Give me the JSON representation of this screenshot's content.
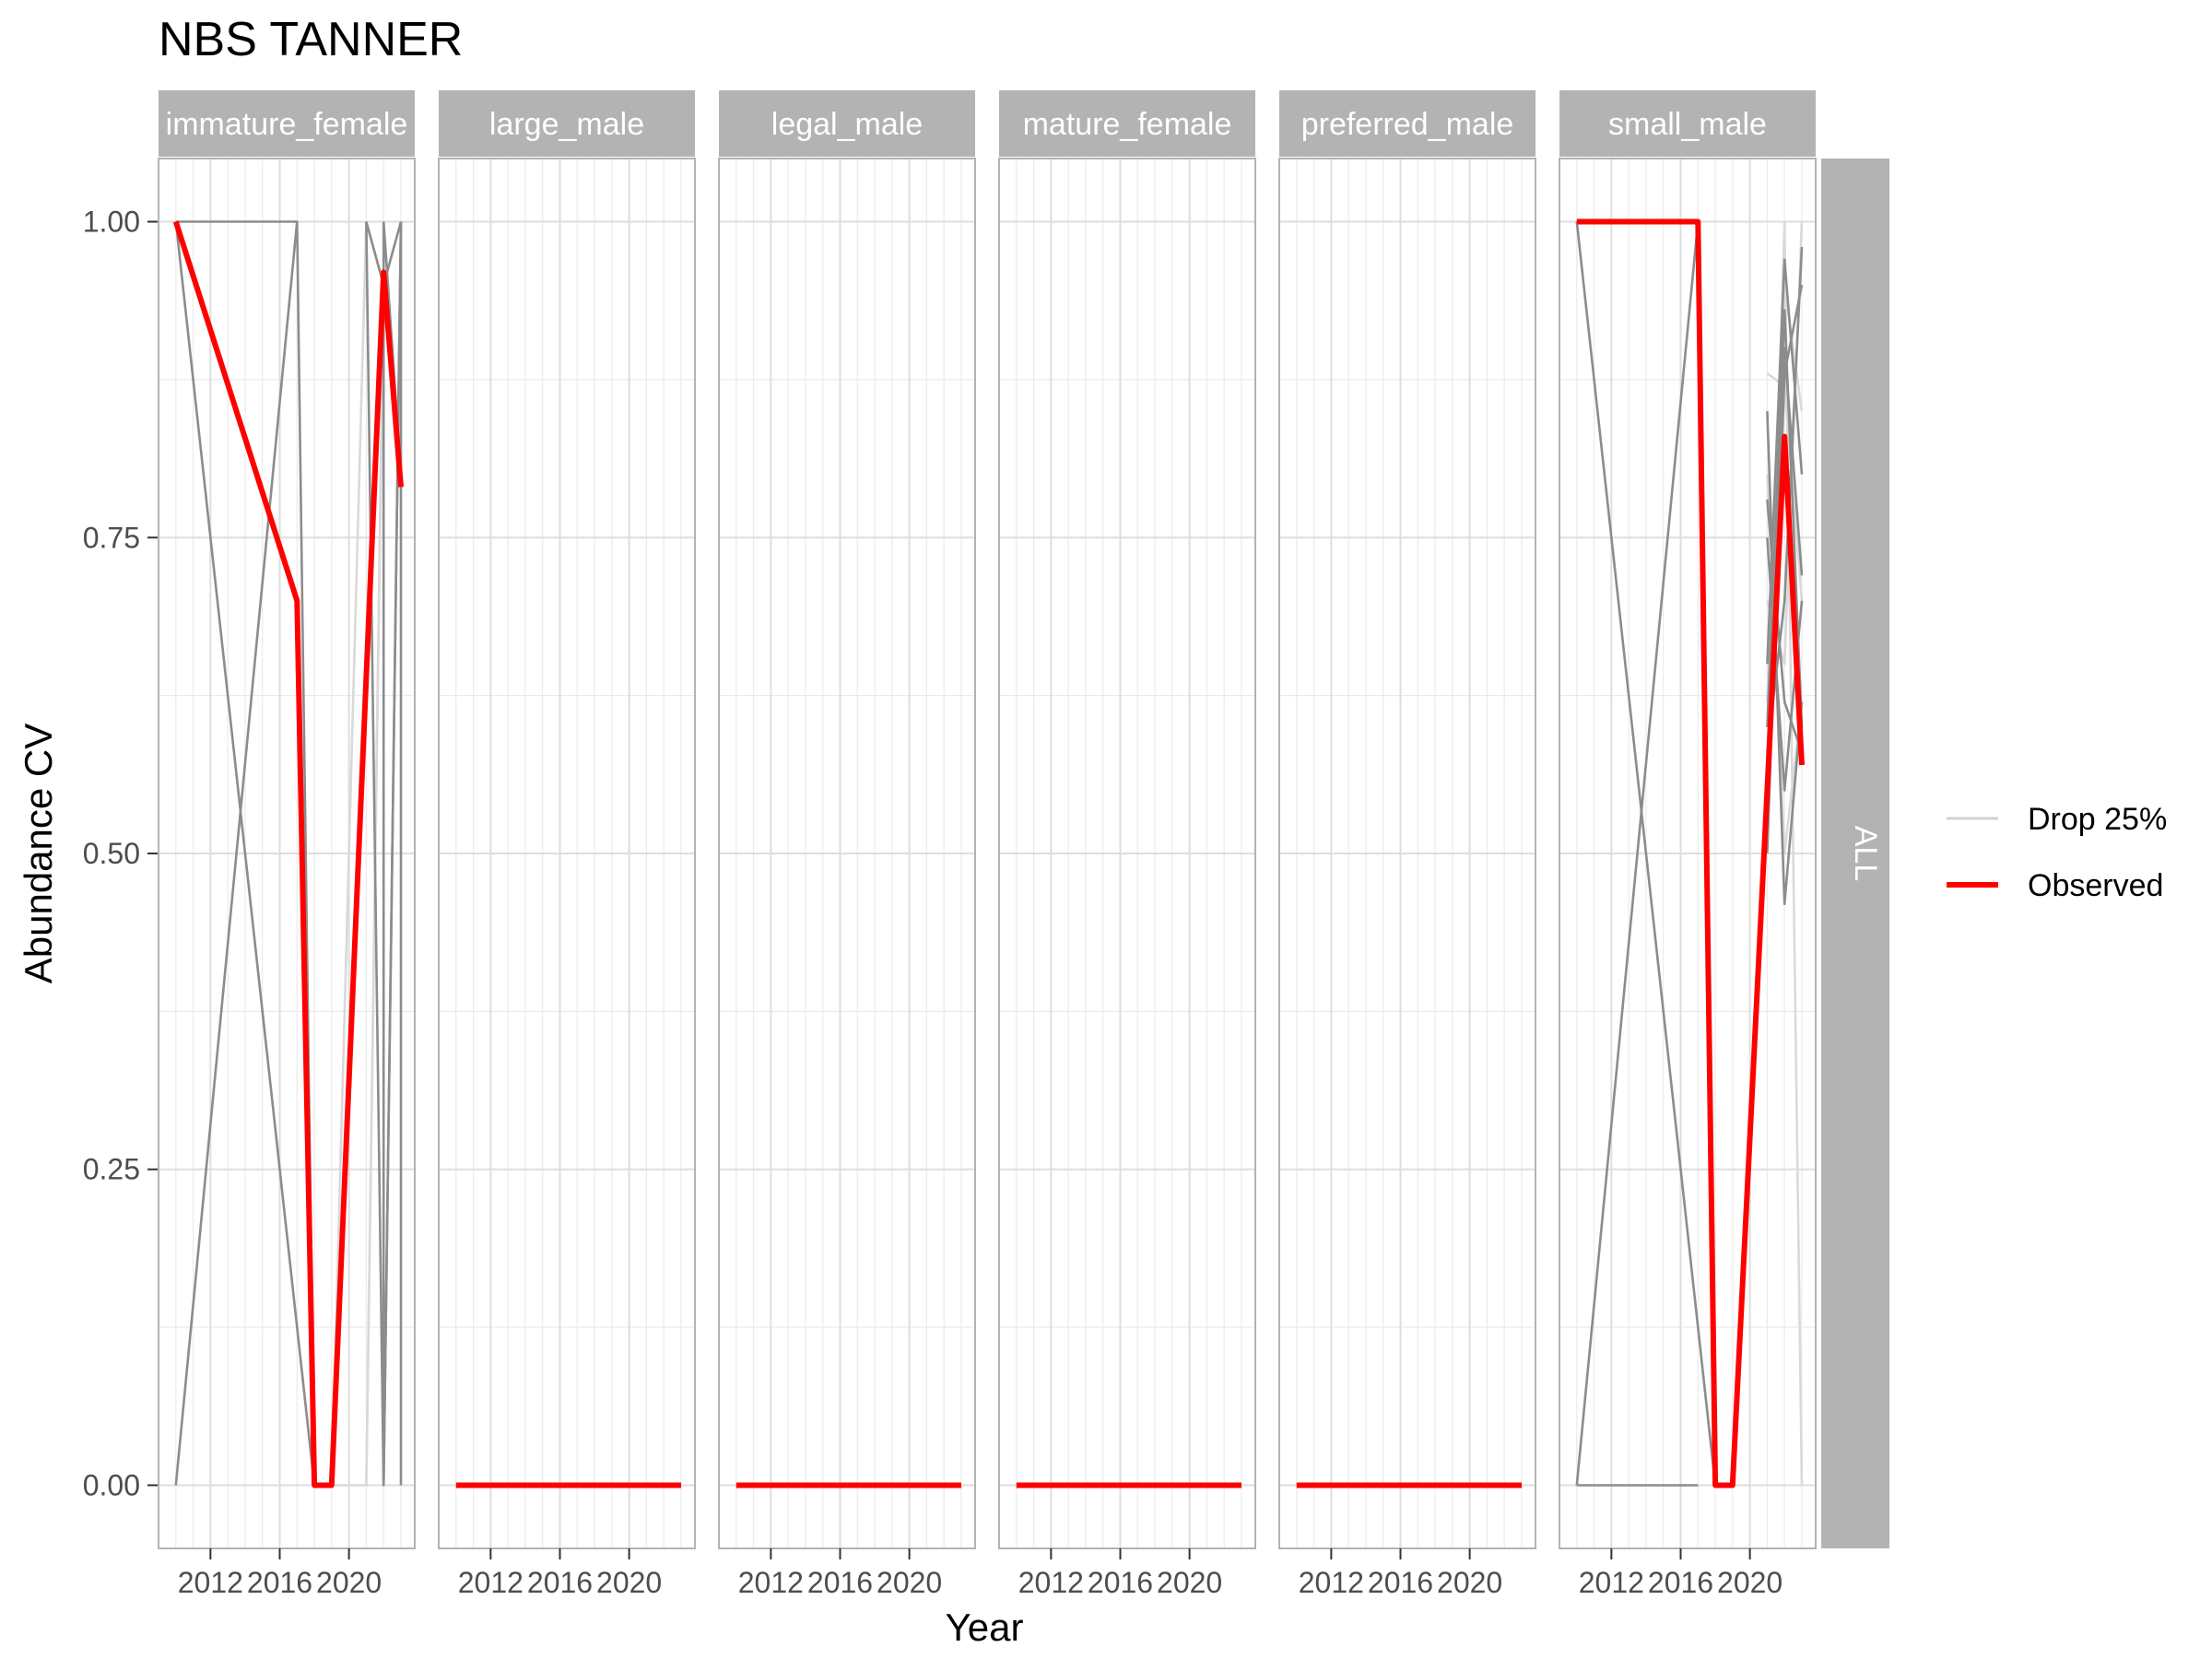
{
  "chart_data": {
    "type": "line",
    "title": "NBS TANNER",
    "xlabel": "Year",
    "ylabel": "Abundance CV",
    "xlim": [
      2009,
      2023.8
    ],
    "ylim": [
      -0.05,
      1.05
    ],
    "x_ticks": [
      2012,
      2016,
      2020
    ],
    "x_tick_labels": [
      "2012",
      "2016",
      "2020"
    ],
    "y_ticks": [
      0,
      0.25,
      0.5,
      0.75,
      1.0
    ],
    "y_tick_labels": [
      "0.00",
      "0.25",
      "0.50",
      "0.75",
      "1.00"
    ],
    "row_strip": "ALL",
    "grid": true,
    "legend": {
      "placement": "right",
      "entries": [
        {
          "label": "Drop 25%",
          "color": "#d3d3d3"
        },
        {
          "label": "Observed",
          "color": "#ff0000"
        }
      ]
    },
    "colors": {
      "observed": "#ff0000",
      "drop_light": "#d9d9d9",
      "drop_dark": "#8c8c8c",
      "strip_bg": "#b3b3b3",
      "grid": "#ebebeb",
      "panel_border": "#b3b3b3"
    },
    "panels": [
      {
        "name": "immature_female",
        "observed": {
          "x": [
            2010,
            2017,
            2018,
            2019,
            2022,
            2023
          ],
          "y": [
            1.0,
            0.7,
            0.0,
            0.0,
            0.96,
            0.79
          ]
        },
        "drop_dark": [
          {
            "x": [
              2010,
              2017,
              2018
            ],
            "y": [
              1.0,
              1.0,
              0.0
            ]
          },
          {
            "x": [
              2010,
              2017
            ],
            "y": [
              0.0,
              1.0
            ]
          },
          {
            "x": [
              2010,
              2018
            ],
            "y": [
              1.0,
              0.0
            ]
          },
          {
            "x": [
              2021,
              2022,
              2023
            ],
            "y": [
              1.0,
              0.95,
              1.0
            ]
          },
          {
            "x": [
              2022,
              2023
            ],
            "y": [
              0.0,
              1.0
            ]
          },
          {
            "x": [
              2021,
              2022
            ],
            "y": [
              1.0,
              0.0
            ]
          },
          {
            "x": [
              2022,
              2022,
              2023
            ],
            "y": [
              1.0,
              0.0,
              1.0
            ]
          },
          {
            "x": [
              2023,
              2023
            ],
            "y": [
              1.0,
              0.0
            ]
          },
          {
            "x": [
              2022,
              2023
            ],
            "y": [
              1.0,
              0.8
            ]
          }
        ],
        "drop_light": [
          {
            "x": [
              2018,
              2019,
              2021,
              2022
            ],
            "y": [
              0.0,
              0.0,
              0.0,
              0.96
            ]
          },
          {
            "x": [
              2019,
              2021,
              2022
            ],
            "y": [
              0.0,
              1.0,
              0.95
            ]
          },
          {
            "x": [
              2021,
              2022,
              2023
            ],
            "y": [
              0.0,
              0.95,
              0.8
            ]
          }
        ]
      },
      {
        "name": "large_male",
        "observed": {
          "x": [
            2010,
            2023
          ],
          "y": [
            0.0,
            0.0
          ]
        },
        "drop_dark": [],
        "drop_light": []
      },
      {
        "name": "legal_male",
        "observed": {
          "x": [
            2010,
            2023
          ],
          "y": [
            0.0,
            0.0
          ]
        },
        "drop_dark": [],
        "drop_light": []
      },
      {
        "name": "mature_female",
        "observed": {
          "x": [
            2010,
            2023
          ],
          "y": [
            0.0,
            0.0
          ]
        },
        "drop_dark": [],
        "drop_light": []
      },
      {
        "name": "preferred_male",
        "observed": {
          "x": [
            2010,
            2023
          ],
          "y": [
            0.0,
            0.0
          ]
        },
        "drop_dark": [],
        "drop_light": []
      },
      {
        "name": "small_male",
        "observed": {
          "x": [
            2010,
            2017,
            2018,
            2019,
            2021,
            2022,
            2023
          ],
          "y": [
            1.0,
            1.0,
            0.0,
            0.0,
            0.55,
            0.83,
            0.57
          ]
        },
        "drop_dark": [
          {
            "x": [
              2010,
              2017,
              2018
            ],
            "y": [
              1.0,
              1.0,
              0.0
            ]
          },
          {
            "x": [
              2010,
              2017
            ],
            "y": [
              0.0,
              0.0
            ]
          },
          {
            "x": [
              2010,
              2017
            ],
            "y": [
              0.0,
              1.0
            ]
          },
          {
            "x": [
              2010,
              2018
            ],
            "y": [
              1.0,
              0.0
            ]
          },
          {
            "x": [
              2021,
              2022,
              2023
            ],
            "y": [
              0.6,
              0.93,
              0.6
            ]
          },
          {
            "x": [
              2021,
              2022,
              2023
            ],
            "y": [
              0.75,
              0.55,
              0.7
            ]
          },
          {
            "x": [
              2021,
              2022,
              2023
            ],
            "y": [
              0.5,
              0.88,
              0.95
            ]
          },
          {
            "x": [
              2021,
              2022,
              2023
            ],
            "y": [
              0.85,
              0.46,
              0.62
            ]
          },
          {
            "x": [
              2021,
              2022,
              2023
            ],
            "y": [
              0.65,
              0.97,
              0.8
            ]
          },
          {
            "x": [
              2021,
              2022,
              2023
            ],
            "y": [
              0.58,
              0.7,
              0.98
            ]
          },
          {
            "x": [
              2021,
              2022,
              2023
            ],
            "y": [
              0.78,
              0.62,
              0.58
            ]
          },
          {
            "x": [
              2021,
              2022,
              2023
            ],
            "y": [
              0.55,
              0.9,
              0.72
            ]
          }
        ],
        "drop_light": [
          {
            "x": [
              2021,
              2022,
              2023
            ],
            "y": [
              0.88,
              0.87,
              0.7
            ]
          },
          {
            "x": [
              2021,
              2022,
              2023
            ],
            "y": [
              0.55,
              1.0,
              0.0
            ]
          },
          {
            "x": [
              2021,
              2022,
              2023
            ],
            "y": [
              0.7,
              0.65,
              1.0
            ]
          },
          {
            "x": [
              2021,
              2022,
              2023
            ],
            "y": [
              0.8,
              0.5,
              0.62
            ]
          },
          {
            "x": [
              2021,
              2022,
              2023
            ],
            "y": [
              0.62,
              0.95,
              0.85
            ]
          }
        ]
      }
    ]
  }
}
